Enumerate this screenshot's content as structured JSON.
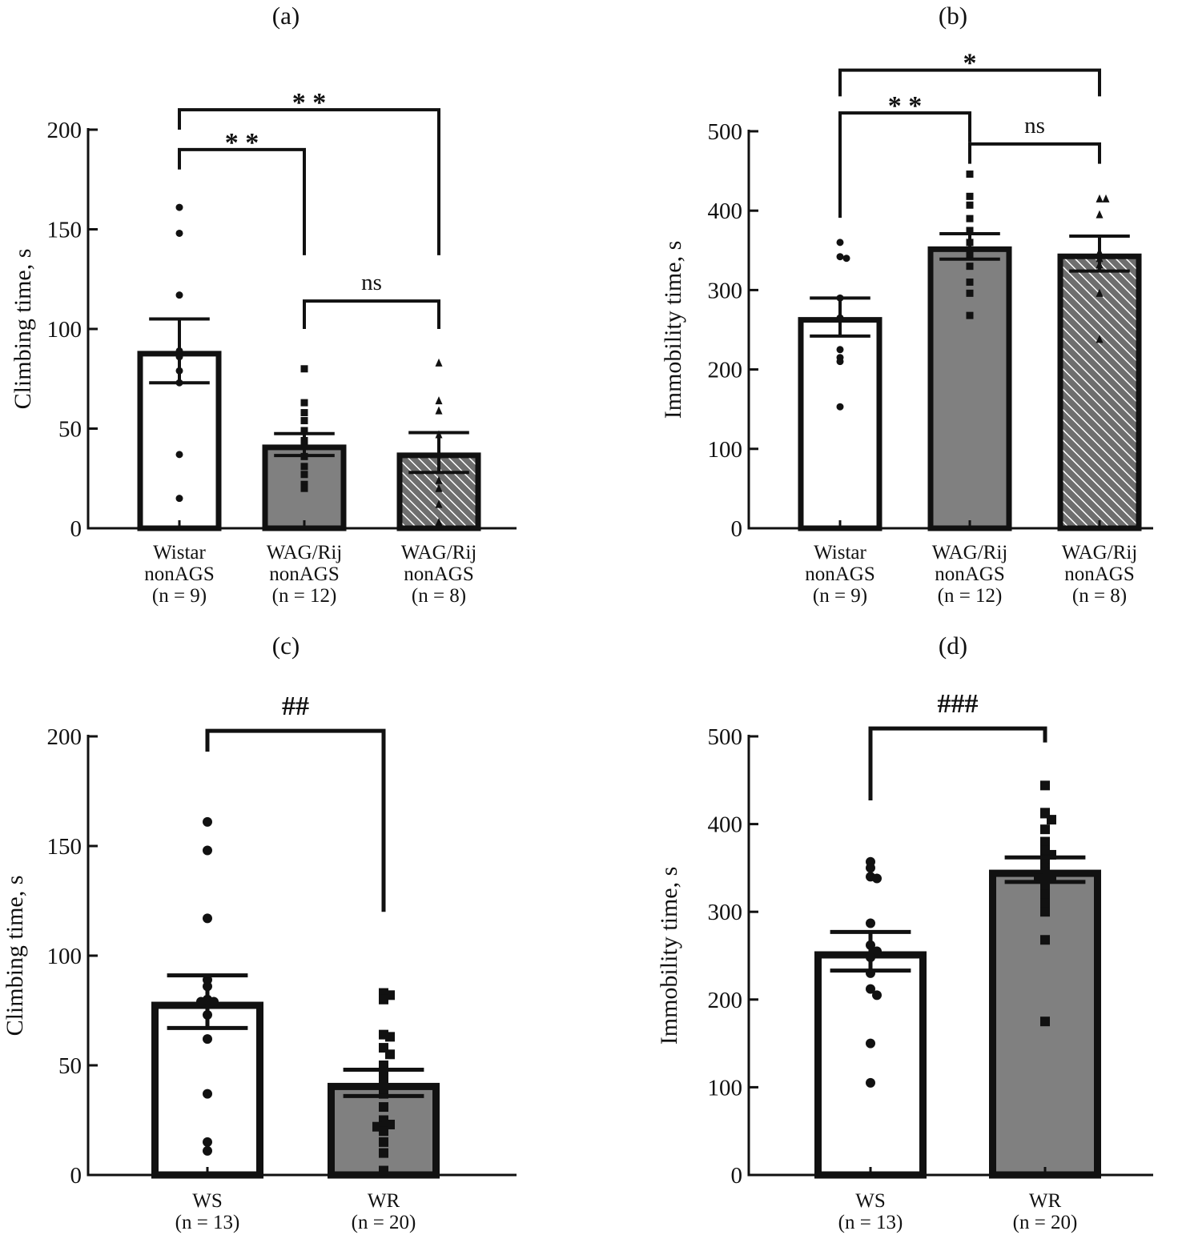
{
  "chart_data": [
    {
      "type": "bar",
      "title": "(a)",
      "ylabel": "Climbing time, s",
      "ylim": [
        0,
        200
      ],
      "yticks": [
        "0",
        "50",
        "100",
        "150",
        "200"
      ],
      "categories": [
        [
          "Wistar",
          "nonAGS",
          "(n = 9)"
        ],
        [
          "WAG/Rij",
          "nonAGS",
          "(n = 12)"
        ],
        [
          "WAG/Rij",
          "nonAGS",
          "(n = 8)"
        ]
      ],
      "bar_styles": [
        "white",
        "gray",
        "hatched"
      ],
      "markers": [
        "circle",
        "square",
        "triangle"
      ],
      "means": [
        89,
        42,
        38
      ],
      "sem": [
        16,
        5.5,
        10
      ],
      "points": [
        [
          161,
          148,
          117,
          89,
          86,
          79,
          73,
          37,
          15
        ],
        [
          80,
          63,
          58,
          54,
          49,
          44,
          41,
          36,
          31,
          27,
          22,
          20
        ],
        [
          83,
          64,
          59,
          47,
          24,
          20,
          12,
          3
        ]
      ],
      "comparisons": [
        {
          "from": 0,
          "to": 1,
          "label": "* *",
          "level": 190,
          "left_end": 180,
          "right_end": 137
        },
        {
          "from": 0,
          "to": 2,
          "label": "* *",
          "level": 210,
          "left_end": 200,
          "right_end": 137
        },
        {
          "from": 1,
          "to": 2,
          "label": "ns",
          "level": 114,
          "left_end": 100,
          "right_end": 100
        }
      ]
    },
    {
      "type": "bar",
      "title": "(b)",
      "ylabel": "Immobility time, s",
      "ylim": [
        0,
        500
      ],
      "yticks": [
        "0",
        "100",
        "200",
        "300",
        "400",
        "500"
      ],
      "categories": [
        [
          "Wistar",
          "nonAGS",
          "(n = 9)"
        ],
        [
          "WAG/Rij",
          "nonAGS",
          "(n = 12)"
        ],
        [
          "WAG/Rij",
          "nonAGS",
          "(n = 8)"
        ]
      ],
      "bar_styles": [
        "white",
        "gray",
        "hatched"
      ],
      "markers": [
        "circle",
        "square",
        "triangle"
      ],
      "means": [
        266,
        355,
        346
      ],
      "sem": [
        24,
        16,
        22
      ],
      "points": [
        [
          360,
          342,
          340,
          290,
          265,
          225,
          215,
          210,
          153
        ],
        [
          446,
          418,
          407,
          390,
          375,
          360,
          350,
          345,
          330,
          310,
          296,
          268
        ],
        [
          415,
          415,
          395,
          348,
          340,
          332,
          296,
          238
        ]
      ],
      "comparisons": [
        {
          "from": 0,
          "to": 2,
          "label": "*",
          "level": 577,
          "left_end": 544,
          "right_end": 544
        },
        {
          "from": 0,
          "to": 1,
          "label": "* *",
          "level": 523,
          "left_end": 391,
          "right_end": 486
        },
        {
          "from": 1,
          "to": 2,
          "label": "ns",
          "level": 484,
          "left_end": 459,
          "right_end": 459
        }
      ]
    },
    {
      "type": "bar",
      "title": "(c)",
      "ylabel": "Climbing time, s",
      "ylim": [
        0,
        200
      ],
      "yticks": [
        "0",
        "50",
        "100",
        "150",
        "200"
      ],
      "categories": [
        [
          "WS",
          "(n = 13)"
        ],
        [
          "WR",
          "(n = 20)"
        ]
      ],
      "bar_styles": [
        "white",
        "gray"
      ],
      "markers": [
        "circle",
        "square"
      ],
      "means": [
        79,
        42
      ],
      "sem": [
        12,
        6
      ],
      "points": [
        [
          161,
          148,
          117,
          89,
          86,
          80,
          79,
          73,
          62,
          37,
          15,
          11,
          79
        ],
        [
          83,
          82,
          80,
          64,
          63,
          58,
          55,
          50,
          45,
          41,
          37,
          31,
          25,
          24,
          23,
          22,
          20,
          15,
          10,
          2
        ]
      ],
      "comparisons": [
        {
          "from": 0,
          "to": 1,
          "label": "##",
          "level": 202.5,
          "left_end": 193,
          "right_end": 120
        }
      ]
    },
    {
      "type": "bar",
      "title": "(d)",
      "ylabel": "Immobility time, s",
      "ylim": [
        0,
        500
      ],
      "yticks": [
        "0",
        "100",
        "200",
        "300",
        "400",
        "500"
      ],
      "categories": [
        [
          "WS",
          "(n = 13)"
        ],
        [
          "WR",
          "(n = 20)"
        ]
      ],
      "bar_styles": [
        "white",
        "gray"
      ],
      "markers": [
        "circle",
        "square"
      ],
      "means": [
        255,
        348
      ],
      "sem": [
        22,
        14
      ],
      "points": [
        [
          357,
          350,
          340,
          338,
          287,
          262,
          255,
          248,
          230,
          212,
          205,
          150,
          105
        ],
        [
          444,
          413,
          412,
          405,
          394,
          380,
          370,
          365,
          360,
          350,
          345,
          340,
          338,
          335,
          328,
          320,
          310,
          300,
          268,
          175
        ]
      ],
      "comparisons": [
        {
          "from": 0,
          "to": 1,
          "label": "###",
          "level": 509,
          "left_end": 427,
          "right_end": 493
        }
      ]
    }
  ],
  "colors": {
    "gray_bar": "#808080",
    "ink": "#111111",
    "hatch_bg": "#6e6e6e",
    "hatch_line": "#ffffff"
  }
}
